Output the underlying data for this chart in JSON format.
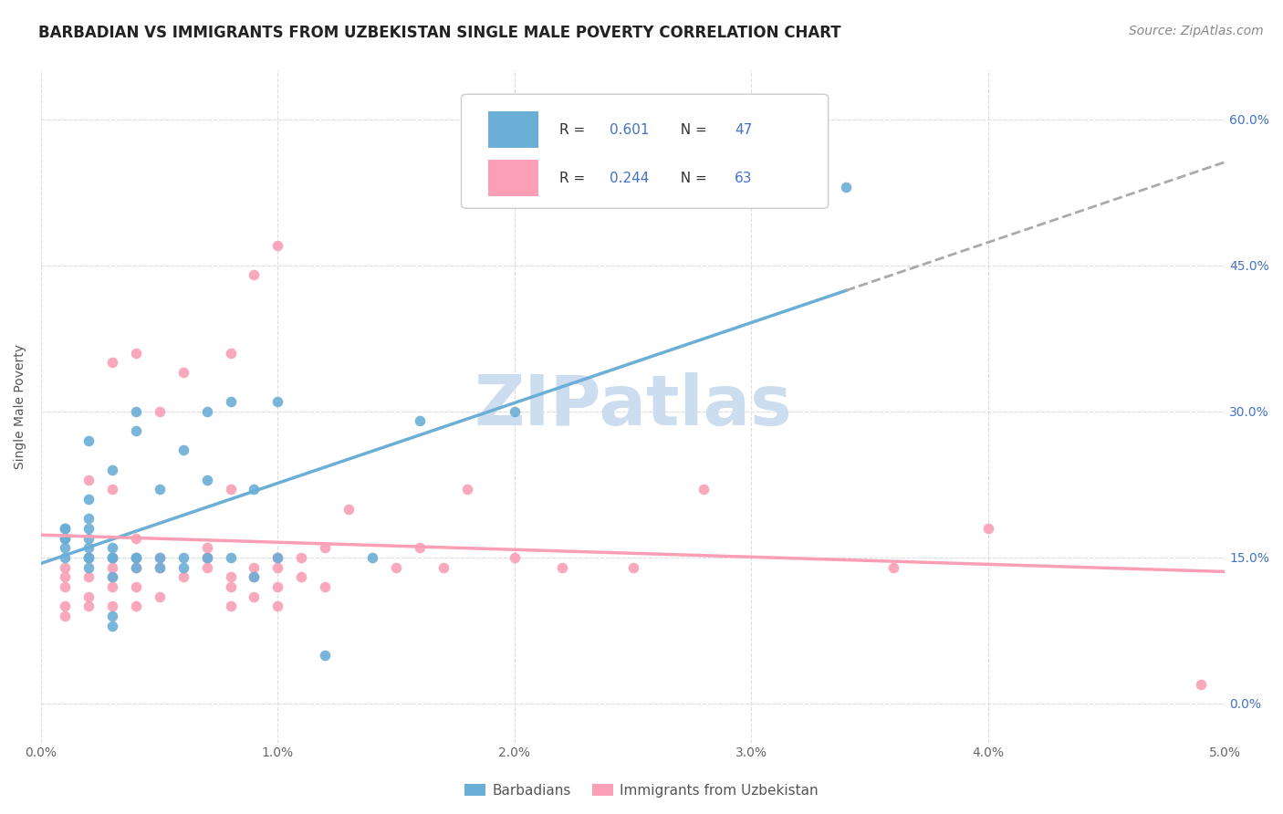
{
  "title": "BARBADIAN VS IMMIGRANTS FROM UZBEKISTAN SINGLE MALE POVERTY CORRELATION CHART",
  "source": "Source: ZipAtlas.com",
  "ylabel": "Single Male Poverty",
  "xlim": [
    0.0,
    0.05
  ],
  "ylim": [
    -0.04,
    0.65
  ],
  "barbadian_color": "#6baed6",
  "uzbekistan_color": "#fa9fb5",
  "barbadian_R": 0.601,
  "barbadian_N": 47,
  "uzbekistan_R": 0.244,
  "uzbekistan_N": 63,
  "legend_label_1": "Barbadians",
  "legend_label_2": "Immigrants from Uzbekistan",
  "barbadian_x": [
    0.001,
    0.001,
    0.001,
    0.001,
    0.001,
    0.001,
    0.002,
    0.002,
    0.002,
    0.002,
    0.002,
    0.002,
    0.002,
    0.002,
    0.002,
    0.003,
    0.003,
    0.003,
    0.003,
    0.003,
    0.003,
    0.003,
    0.004,
    0.004,
    0.004,
    0.004,
    0.004,
    0.005,
    0.005,
    0.005,
    0.006,
    0.006,
    0.006,
    0.007,
    0.007,
    0.007,
    0.008,
    0.008,
    0.009,
    0.009,
    0.01,
    0.01,
    0.012,
    0.014,
    0.016,
    0.02,
    0.034
  ],
  "barbadian_y": [
    0.15,
    0.16,
    0.17,
    0.17,
    0.18,
    0.18,
    0.14,
    0.15,
    0.15,
    0.16,
    0.17,
    0.18,
    0.19,
    0.21,
    0.27,
    0.08,
    0.09,
    0.13,
    0.15,
    0.15,
    0.16,
    0.24,
    0.14,
    0.15,
    0.15,
    0.28,
    0.3,
    0.14,
    0.15,
    0.22,
    0.14,
    0.15,
    0.26,
    0.15,
    0.23,
    0.3,
    0.15,
    0.31,
    0.13,
    0.22,
    0.15,
    0.31,
    0.05,
    0.15,
    0.29,
    0.3,
    0.53
  ],
  "uzbekistan_x": [
    0.001,
    0.001,
    0.001,
    0.001,
    0.001,
    0.002,
    0.002,
    0.002,
    0.002,
    0.002,
    0.003,
    0.003,
    0.003,
    0.003,
    0.003,
    0.003,
    0.003,
    0.004,
    0.004,
    0.004,
    0.004,
    0.004,
    0.004,
    0.005,
    0.005,
    0.005,
    0.005,
    0.006,
    0.006,
    0.007,
    0.007,
    0.007,
    0.007,
    0.008,
    0.008,
    0.008,
    0.008,
    0.008,
    0.009,
    0.009,
    0.009,
    0.009,
    0.01,
    0.01,
    0.01,
    0.01,
    0.01,
    0.011,
    0.011,
    0.012,
    0.012,
    0.013,
    0.015,
    0.016,
    0.017,
    0.018,
    0.02,
    0.022,
    0.025,
    0.028,
    0.036,
    0.04,
    0.049
  ],
  "uzbekistan_y": [
    0.09,
    0.1,
    0.12,
    0.13,
    0.14,
    0.1,
    0.11,
    0.13,
    0.15,
    0.23,
    0.1,
    0.12,
    0.13,
    0.14,
    0.15,
    0.22,
    0.35,
    0.1,
    0.12,
    0.14,
    0.15,
    0.17,
    0.36,
    0.11,
    0.14,
    0.15,
    0.3,
    0.13,
    0.34,
    0.14,
    0.15,
    0.15,
    0.16,
    0.1,
    0.12,
    0.13,
    0.22,
    0.36,
    0.11,
    0.13,
    0.14,
    0.44,
    0.1,
    0.12,
    0.14,
    0.15,
    0.47,
    0.13,
    0.15,
    0.12,
    0.16,
    0.2,
    0.14,
    0.16,
    0.14,
    0.22,
    0.15,
    0.14,
    0.14,
    0.22,
    0.14,
    0.18,
    0.02
  ],
  "background_color": "#ffffff",
  "grid_color": "#dddddd",
  "title_fontsize": 12,
  "axis_label_fontsize": 10,
  "tick_fontsize": 10,
  "source_fontsize": 10,
  "watermark_text": "ZIPatlas",
  "watermark_color": "#ccddf0",
  "watermark_fontsize": 55
}
